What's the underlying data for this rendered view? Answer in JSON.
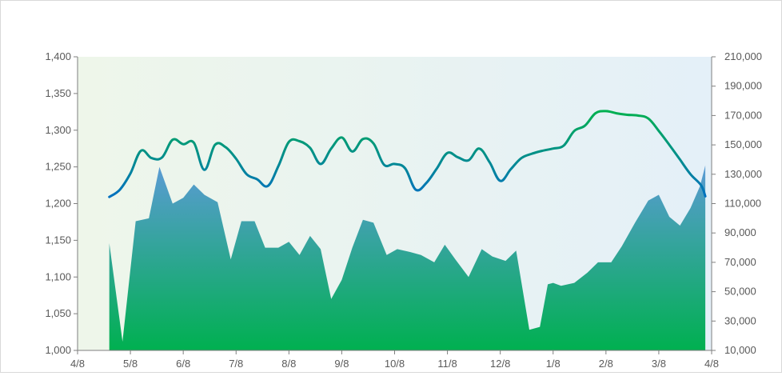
{
  "chart_data": {
    "type": "line+area",
    "title": "",
    "xlabel": "",
    "ylabel": "",
    "y2label": "",
    "grid": false,
    "legend": "none",
    "x_ticks": [
      "4/8",
      "5/8",
      "6/8",
      "7/8",
      "8/8",
      "9/8",
      "10/8",
      "11/8",
      "12/8",
      "1/8",
      "2/8",
      "3/8",
      "4/8"
    ],
    "xlim": [
      0,
      12
    ],
    "ylim": [
      1000,
      1400
    ],
    "y_ticks": [
      "1,000",
      "1,050",
      "1,100",
      "1,150",
      "1,200",
      "1,250",
      "1,300",
      "1,350",
      "1,400"
    ],
    "y2lim": [
      10000,
      210000
    ],
    "y2_ticks": [
      "10,000",
      "30,000",
      "50,000",
      "70,000",
      "90,000",
      "110,000",
      "130,000",
      "150,000",
      "170,000",
      "190,000",
      "210,000"
    ],
    "colors": {
      "line_start": "#00B050",
      "line_end": "#0070C0",
      "area_top": "#5B9BD5",
      "area_bottom": "#00B050",
      "plot_bg_left": "#EEF6EA",
      "plot_bg_right": "#E4F0F8",
      "axis": "#7F7F7F",
      "text": "#595959"
    },
    "series": [
      {
        "type": "line",
        "axis": "primary",
        "x": [
          0.6,
          0.8,
          1.0,
          1.2,
          1.4,
          1.6,
          1.8,
          2.0,
          2.2,
          2.4,
          2.6,
          2.8,
          3.0,
          3.2,
          3.4,
          3.6,
          3.8,
          4.0,
          4.2,
          4.4,
          4.6,
          4.8,
          5.0,
          5.2,
          5.4,
          5.6,
          5.8,
          6.0,
          6.2,
          6.4,
          6.6,
          6.8,
          7.0,
          7.2,
          7.4,
          7.6,
          7.8,
          8.0,
          8.2,
          8.4,
          8.6,
          8.8,
          9.0,
          9.2,
          9.4,
          9.6,
          9.8,
          10.0,
          10.2,
          10.4,
          10.6,
          10.8,
          11.0,
          11.2,
          11.4,
          11.6,
          11.8,
          11.88
        ],
        "values": [
          1209,
          1219,
          1241,
          1272,
          1262,
          1263,
          1287,
          1281,
          1283,
          1246,
          1280,
          1277,
          1261,
          1240,
          1233,
          1224,
          1251,
          1284,
          1285,
          1276,
          1254,
          1275,
          1290,
          1271,
          1288,
          1282,
          1253,
          1254,
          1248,
          1219,
          1228,
          1248,
          1269,
          1263,
          1259,
          1275,
          1256,
          1231,
          1247,
          1262,
          1268,
          1272,
          1275,
          1279,
          1299,
          1306,
          1323,
          1326,
          1323,
          1321,
          1320,
          1316,
          1299,
          1280,
          1260,
          1240,
          1225,
          1210
        ]
      },
      {
        "type": "area",
        "axis": "secondary",
        "x": [
          0.6,
          0.85,
          1.1,
          1.35,
          1.55,
          1.8,
          2.0,
          2.2,
          2.4,
          2.65,
          2.9,
          3.1,
          3.35,
          3.55,
          3.8,
          4.0,
          4.2,
          4.4,
          4.6,
          4.8,
          5.0,
          5.2,
          5.4,
          5.6,
          5.85,
          6.05,
          6.3,
          6.5,
          6.75,
          6.95,
          7.15,
          7.4,
          7.65,
          7.85,
          8.1,
          8.3,
          8.55,
          8.75,
          8.9,
          9.0,
          9.15,
          9.4,
          9.65,
          9.85,
          10.1,
          10.3,
          10.55,
          10.8,
          11.0,
          11.2,
          11.4,
          11.6,
          11.78,
          11.88
        ],
        "values": [
          83000,
          16000,
          98000,
          100000,
          135000,
          110000,
          114000,
          123000,
          116000,
          111000,
          72000,
          98000,
          98000,
          80000,
          80000,
          84000,
          75000,
          88000,
          79000,
          45000,
          58000,
          80000,
          99000,
          97000,
          75000,
          79000,
          77000,
          75000,
          70000,
          82000,
          72000,
          60000,
          79000,
          74000,
          71000,
          78000,
          24000,
          26000,
          55000,
          56000,
          54000,
          56000,
          63000,
          70000,
          70000,
          81000,
          97000,
          112000,
          116000,
          101000,
          95000,
          107000,
          122000,
          136000
        ]
      }
    ]
  }
}
